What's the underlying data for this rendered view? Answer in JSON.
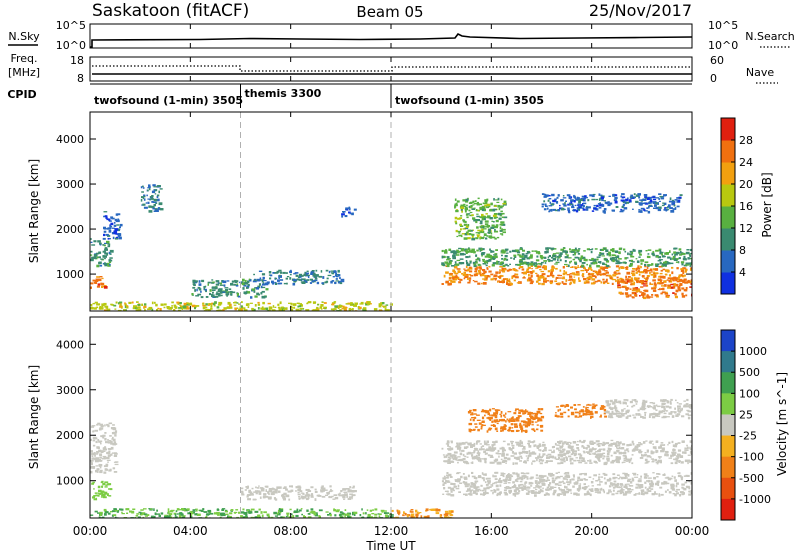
{
  "header": {
    "site": "Saskatoon (fitACF)",
    "beam": "Beam 05",
    "date": "25/Nov/2017"
  },
  "top_panels": {
    "nsky_label": "N.Sky",
    "nsky_ticks": [
      "10^5",
      "10^0"
    ],
    "nsearch_label": "N.Search",
    "nsearch_ticks": [
      "10^5",
      "10^0"
    ],
    "freq_label": "Freq.",
    "freq_unit": "[MHz]",
    "freq_ticks": [
      "18",
      "8"
    ],
    "nave_label": "Nave",
    "nave_ticks": [
      "60",
      "0"
    ],
    "cpid_label": "CPID",
    "cpid_segments": [
      {
        "label": "twofsound (1-min) 3505",
        "start_hour": 0,
        "end_hour": 6
      },
      {
        "label": "themis 3300",
        "start_hour": 6,
        "end_hour": 12
      },
      {
        "label": "twofsound (1-min) 3505",
        "start_hour": 12,
        "end_hour": 24
      }
    ]
  },
  "x_axis": {
    "title": "Time UT",
    "ticks": [
      "00:00",
      "04:00",
      "08:00",
      "12:00",
      "16:00",
      "20:00",
      "00:00"
    ]
  },
  "chart_data": [
    {
      "type": "heatmap",
      "ylabel": "Slant Range [km]",
      "xlim": [
        0,
        24
      ],
      "ylim": [
        180,
        4600
      ],
      "yticks": [
        1000,
        2000,
        3000,
        4000
      ],
      "colorbar": {
        "label": "Power [dB]",
        "ticks": [
          "4",
          "8",
          "12",
          "16",
          "20",
          "24",
          "28"
        ],
        "colors": [
          "#1030e0",
          "#2868c0",
          "#3a8a70",
          "#58b040",
          "#b8c810",
          "#f2a010",
          "#f07010",
          "#e02010"
        ]
      },
      "regions": [
        {
          "hour_start": 0.0,
          "hour_end": 0.6,
          "range_start": 700,
          "range_end": 1000,
          "value": 26
        },
        {
          "hour_start": 0.0,
          "hour_end": 0.8,
          "range_start": 1200,
          "range_end": 1800,
          "value": 10
        },
        {
          "hour_start": 0.5,
          "hour_end": 1.2,
          "range_start": 1800,
          "range_end": 2400,
          "value": 6
        },
        {
          "hour_start": 2.0,
          "hour_end": 2.8,
          "range_start": 2400,
          "range_end": 3000,
          "value": 8
        },
        {
          "hour_start": 0.0,
          "hour_end": 12.0,
          "range_start": 180,
          "range_end": 400,
          "value": 18
        },
        {
          "hour_start": 4.0,
          "hour_end": 7.0,
          "range_start": 500,
          "range_end": 900,
          "value": 10
        },
        {
          "hour_start": 6.5,
          "hour_end": 10.0,
          "range_start": 800,
          "range_end": 1100,
          "value": 8
        },
        {
          "hour_start": 10.0,
          "hour_end": 10.6,
          "range_start": 2300,
          "range_end": 2500,
          "value": 6
        },
        {
          "hour_start": 14.0,
          "hour_end": 24.0,
          "range_start": 800,
          "range_end": 1200,
          "value": 24
        },
        {
          "hour_start": 14.0,
          "hour_end": 24.0,
          "range_start": 1200,
          "range_end": 1600,
          "value": 12
        },
        {
          "hour_start": 14.5,
          "hour_end": 16.5,
          "range_start": 1800,
          "range_end": 2700,
          "value": 14
        },
        {
          "hour_start": 21.0,
          "hour_end": 24.0,
          "range_start": 500,
          "range_end": 900,
          "value": 26
        },
        {
          "hour_start": 18.0,
          "hour_end": 23.5,
          "range_start": 2400,
          "range_end": 2800,
          "value": 6
        }
      ]
    },
    {
      "type": "heatmap",
      "ylabel": "Slant Range [km]",
      "xlim": [
        0,
        24
      ],
      "ylim": [
        180,
        4600
      ],
      "yticks": [
        1000,
        2000,
        3000,
        4000
      ],
      "colorbar": {
        "label": "Velocity [m s^-1]",
        "ticks": [
          "1000",
          "500",
          "100",
          "25",
          "-25",
          "-100",
          "-500",
          "-1000"
        ],
        "colors": [
          "#1c44c8",
          "#307a8c",
          "#3fa050",
          "#7ccc44",
          "#c8c8c0",
          "#f4b020",
          "#f08018",
          "#e85010",
          "#e02010"
        ]
      },
      "regions": [
        {
          "hour_start": 0.0,
          "hour_end": 0.8,
          "range_start": 600,
          "range_end": 1000,
          "value": 50
        },
        {
          "hour_start": 0.0,
          "hour_end": 1.0,
          "range_start": 1200,
          "range_end": 2300,
          "value": 0
        },
        {
          "hour_start": 0.0,
          "hour_end": 12.0,
          "range_start": 180,
          "range_end": 400,
          "value": 100
        },
        {
          "hour_start": 12.0,
          "hour_end": 14.5,
          "range_start": 180,
          "range_end": 400,
          "value": -100
        },
        {
          "hour_start": 6.0,
          "hour_end": 10.5,
          "range_start": 600,
          "range_end": 900,
          "value": 0
        },
        {
          "hour_start": 14.0,
          "hour_end": 24.0,
          "range_start": 700,
          "range_end": 1200,
          "value": 0
        },
        {
          "hour_start": 14.0,
          "hour_end": 24.0,
          "range_start": 1400,
          "range_end": 1900,
          "value": 0
        },
        {
          "hour_start": 15.0,
          "hour_end": 18.0,
          "range_start": 2100,
          "range_end": 2600,
          "value": -300
        },
        {
          "hour_start": 18.5,
          "hour_end": 20.5,
          "range_start": 2400,
          "range_end": 2700,
          "value": -300
        },
        {
          "hour_start": 20.5,
          "hour_end": 24.0,
          "range_start": 2400,
          "range_end": 2800,
          "value": 0
        }
      ]
    }
  ]
}
